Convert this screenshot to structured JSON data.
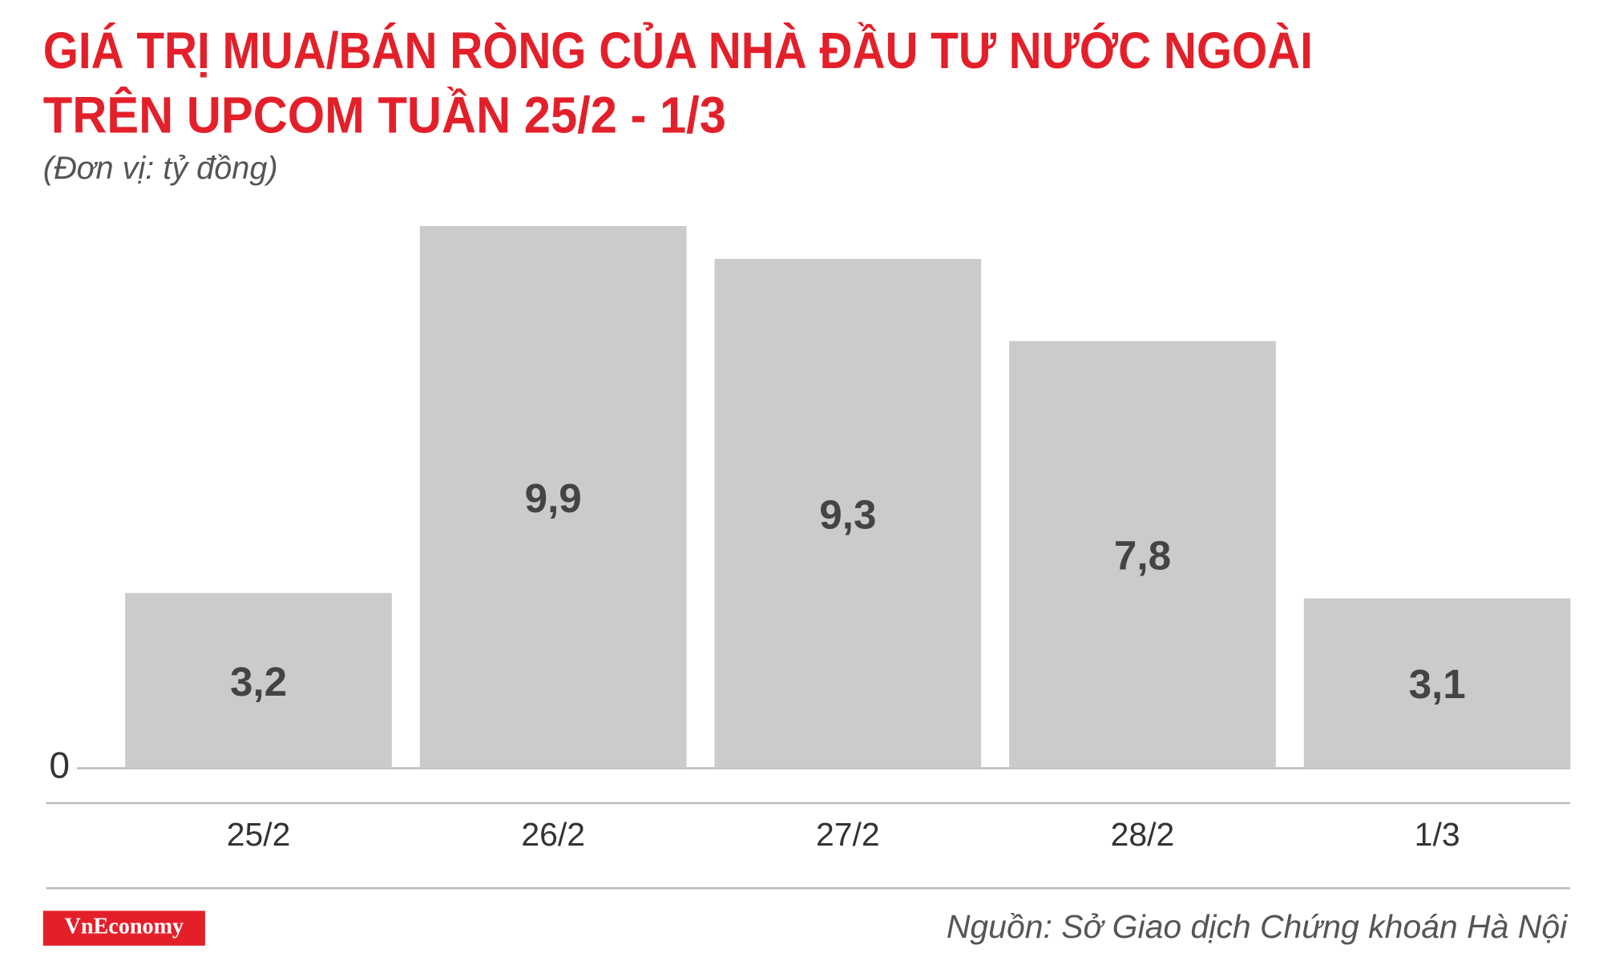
{
  "chart_data": {
    "type": "bar",
    "title": [
      "GIÁ TRỊ MUA/BÁN RÒNG CỦA NHÀ ĐẦU TƯ NƯỚC NGOÀI",
      "TRÊN UPCOM TUẦN 25/2 - 1/3"
    ],
    "subtitle": "(Đơn vị: tỷ đồng)",
    "categories": [
      "25/2",
      "26/2",
      "27/2",
      "28/2",
      "1/3"
    ],
    "values": [
      3.2,
      9.9,
      9.3,
      7.8,
      3.1
    ],
    "value_labels": [
      "3,2",
      "9,9",
      "9,3",
      "7,8",
      "3,1"
    ],
    "color": "#cccbcc",
    "ylim": [
      0,
      10
    ],
    "yticks": [
      0
    ],
    "grid": false,
    "logo": "VnEconomy",
    "source": "Nguồn: Sở Giao dịch Chứng khoán Hà Nội"
  }
}
